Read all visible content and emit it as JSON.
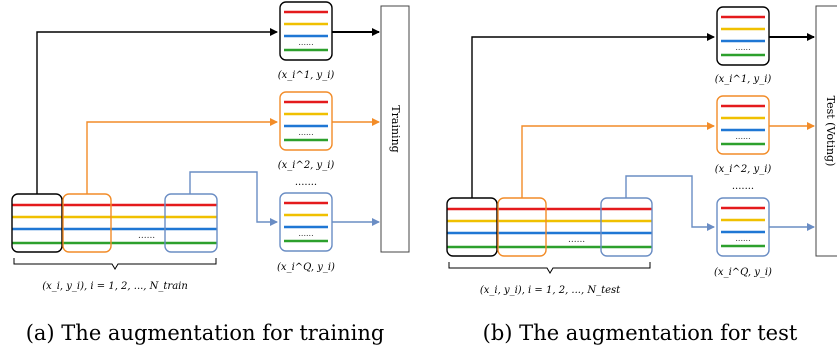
{
  "colors": {
    "red": "#e41a1c",
    "yellow": "#f0c000",
    "blue": "#1f77d4",
    "green": "#2ca02c",
    "black": "#000000",
    "orange": "#f28c28",
    "steel": "#6a8dc4",
    "gray": "#666666"
  },
  "panel_a": {
    "caption": "(a)  The augmentation for training",
    "block_label": "Training",
    "base_label": "(x_i, y_i), i = 1, 2, ..., N_train",
    "aug_labels": [
      "(x_i^1, y_i)",
      "(x_i^2, y_i)",
      "(x_i^Q, y_i)"
    ],
    "ellipsis_small": "......",
    "ellipsis_between": "......."
  },
  "panel_b": {
    "caption": "(b)  The augmentation for test",
    "block_label": "Test (Voting)",
    "base_label": "(x_i, y_i), i = 1, 2, ..., N_test",
    "aug_labels": [
      "(x_i^1, y_i)",
      "(x_i^2, y_i)",
      "(x_i^Q, y_i)"
    ],
    "ellipsis_small": "......",
    "ellipsis_between": "......."
  }
}
